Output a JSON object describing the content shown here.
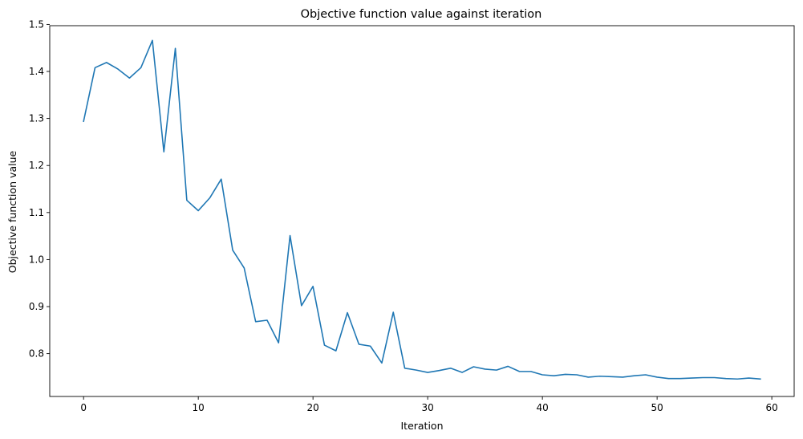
{
  "chart_data": {
    "type": "line",
    "title": "Objective function value against iteration",
    "xlabel": "Iteration",
    "ylabel": "Objective function value",
    "xlim": [
      -2.95,
      61.95
    ],
    "ylim": [
      0.7089,
      1.4973
    ],
    "xticks": [
      0,
      10,
      20,
      30,
      40,
      50,
      60
    ],
    "yticks": [
      0.8,
      0.9,
      1.0,
      1.1,
      1.2,
      1.3,
      1.4,
      1.5
    ],
    "xtick_labels": [
      "0",
      "10",
      "20",
      "30",
      "40",
      "50",
      "60"
    ],
    "ytick_labels": [
      "0.8",
      "0.9",
      "1.0",
      "1.1",
      "1.2",
      "1.3",
      "1.4",
      "1.5"
    ],
    "grid": false,
    "series": [
      {
        "color": "#1f77b4",
        "x": [
          0,
          1,
          2,
          3,
          4,
          5,
          6,
          7,
          8,
          9,
          10,
          11,
          12,
          13,
          14,
          15,
          16,
          17,
          18,
          19,
          20,
          21,
          22,
          23,
          24,
          25,
          26,
          27,
          28,
          29,
          30,
          31,
          32,
          33,
          34,
          35,
          36,
          37,
          38,
          39,
          40,
          41,
          42,
          43,
          44,
          45,
          46,
          47,
          48,
          49,
          50,
          51,
          52,
          53,
          54,
          55,
          56,
          57,
          58,
          59
        ],
        "y": [
          1.294,
          1.408,
          1.419,
          1.405,
          1.386,
          1.408,
          1.466,
          1.229,
          1.449,
          1.126,
          1.104,
          1.131,
          1.171,
          1.02,
          0.982,
          0.868,
          0.871,
          0.823,
          1.051,
          0.902,
          0.943,
          0.818,
          0.806,
          0.887,
          0.82,
          0.816,
          0.78,
          0.888,
          0.769,
          0.765,
          0.76,
          0.764,
          0.769,
          0.76,
          0.772,
          0.767,
          0.765,
          0.773,
          0.762,
          0.762,
          0.755,
          0.753,
          0.756,
          0.755,
          0.75,
          0.752,
          0.751,
          0.75,
          0.753,
          0.755,
          0.75,
          0.747,
          0.747,
          0.748,
          0.749,
          0.749,
          0.747,
          0.746,
          0.748,
          0.746
        ]
      }
    ]
  }
}
